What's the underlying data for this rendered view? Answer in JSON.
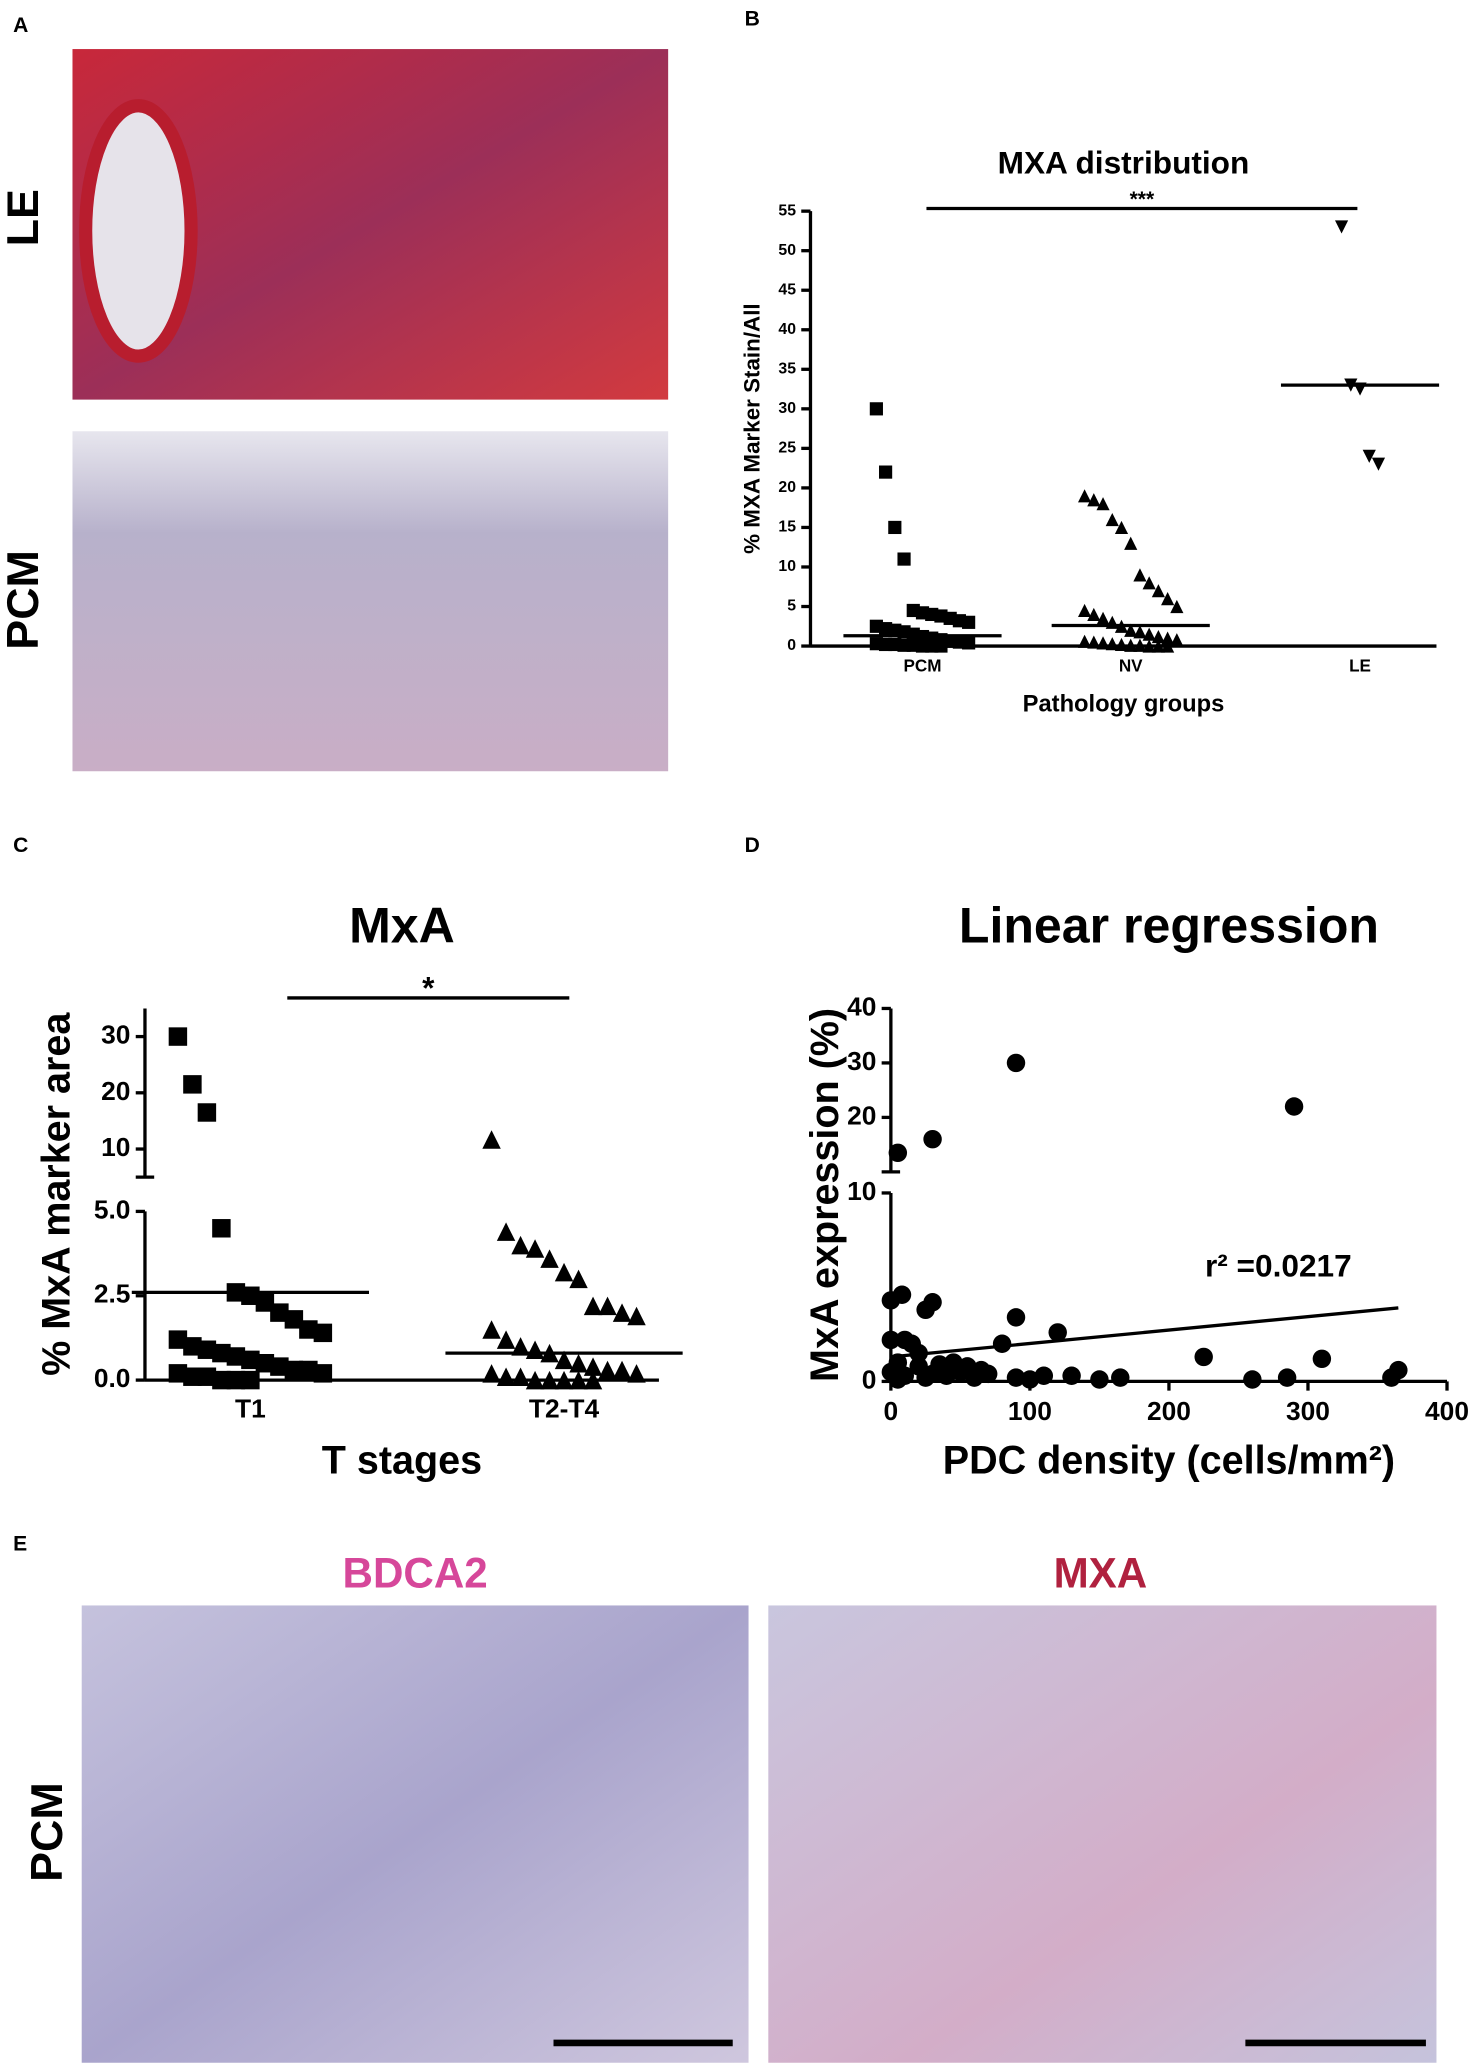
{
  "panels": {
    "letters": [
      "A",
      "B",
      "C",
      "D",
      "E"
    ],
    "row_labels": [
      "LE",
      "PCM",
      "PCM"
    ],
    "stain_labels": [
      "BDCA2",
      "MXA"
    ]
  },
  "chart_data": [
    {
      "type": "dot",
      "title": "MXA distribution",
      "ylabel": "% MXA Marker Stain/All",
      "xlabel": "Pathology groups",
      "categories": [
        "PCM",
        "NV",
        "LE"
      ],
      "markers": [
        "square",
        "triangle",
        "triangle-down"
      ],
      "values": [
        [
          30,
          22,
          15,
          11,
          4.5,
          4.2,
          4.0,
          3.8,
          3.5,
          3.2,
          3.0,
          2.5,
          2.2,
          2.0,
          1.8,
          1.5,
          1.2,
          1.0,
          0.8,
          0.6,
          0.5,
          0.4,
          0.3,
          0.2,
          0.2,
          0.1,
          0.1,
          0.0,
          0.0,
          0.0
        ],
        [
          19,
          18.5,
          18,
          16,
          15,
          13,
          9,
          8,
          7,
          6,
          5,
          4.5,
          4,
          3.5,
          3,
          2.5,
          2,
          1.8,
          1.5,
          1.2,
          1,
          0.8,
          0.6,
          0.5,
          0.4,
          0.3,
          0.2,
          0.1,
          0.1,
          0.0,
          0.0,
          0.0
        ],
        [
          53,
          33,
          32.5,
          24,
          23
        ]
      ],
      "medians": [
        1.3,
        2.6,
        33
      ],
      "significance": "***",
      "ylim": [
        0,
        55
      ],
      "yticks": [
        0,
        5,
        10,
        15,
        20,
        25,
        30,
        35,
        40,
        45,
        50,
        55
      ]
    },
    {
      "type": "dot",
      "title": "MxA",
      "ylabel": "% MxA marker area",
      "xlabel": "T stages",
      "categories": [
        "T1",
        "T2-T4"
      ],
      "markers": [
        "square",
        "triangle"
      ],
      "values": [
        [
          30,
          21.5,
          16.5,
          4.5,
          2.6,
          2.5,
          2.3,
          2.0,
          1.8,
          1.5,
          1.4,
          1.2,
          1.0,
          0.9,
          0.8,
          0.7,
          0.6,
          0.5,
          0.4,
          0.3,
          0.3,
          0.2,
          0.2,
          0.1,
          0.1,
          0.0,
          0.0,
          0.0
        ],
        [
          11.7,
          4.4,
          4.0,
          3.9,
          3.6,
          3.2,
          3.0,
          2.2,
          2.2,
          2.0,
          1.9,
          1.5,
          1.2,
          1.0,
          0.9,
          0.8,
          0.6,
          0.5,
          0.4,
          0.3,
          0.3,
          0.2,
          0.2,
          0.1,
          0.1,
          0.0,
          0.0,
          0.0,
          0.0,
          0.0
        ]
      ],
      "medians": [
        2.6,
        0.8
      ],
      "significance": "*",
      "segments": [
        {
          "ylim": [
            0,
            5
          ],
          "yticks": [
            {
              "value": 0,
              "label": "0.0"
            },
            {
              "value": 2.5,
              "label": "2.5"
            },
            {
              "value": 5,
              "label": "5.0"
            }
          ]
        },
        {
          "ylim": [
            5,
            35
          ],
          "yticks": [
            10,
            20,
            30
          ]
        }
      ]
    },
    {
      "type": "scatter",
      "title": "Linear regression",
      "ylabel": "MxA expression (%)",
      "xlabel": "PDC density (cells/mm²)",
      "annotation": "r² =0.0217",
      "x": [
        5,
        30,
        90,
        290,
        0,
        8,
        30,
        25,
        90,
        120,
        80,
        0,
        10,
        15,
        20,
        5,
        0,
        10,
        20,
        30,
        40,
        50,
        60,
        70,
        90,
        100,
        110,
        130,
        150,
        165,
        225,
        260,
        285,
        310,
        360,
        365,
        45,
        35,
        25,
        5,
        55,
        65
      ],
      "y": [
        13.5,
        16,
        30,
        22,
        4.3,
        4.6,
        4.2,
        3.8,
        3.4,
        2.6,
        2.0,
        2.2,
        2.2,
        2.0,
        1.5,
        1.0,
        0.5,
        0.3,
        0.8,
        0.4,
        0.3,
        0.5,
        0.2,
        0.4,
        0.2,
        0.1,
        0.3,
        0.3,
        0.1,
        0.2,
        1.3,
        0.1,
        0.2,
        1.2,
        0.2,
        0.6,
        1.0,
        0.9,
        0.2,
        0.1,
        0.8,
        0.6
      ],
      "regression": {
        "x": [
          0,
          365
        ],
        "y": [
          1.3,
          3.9
        ]
      },
      "xlim": [
        0,
        400
      ],
      "xticks": [
        0,
        100,
        200,
        300,
        400
      ],
      "segments": [
        {
          "ylim": [
            0,
            10
          ],
          "yticks": [
            0,
            10
          ]
        },
        {
          "ylim": [
            10,
            40
          ],
          "yticks": [
            20,
            30,
            40
          ]
        }
      ]
    }
  ]
}
